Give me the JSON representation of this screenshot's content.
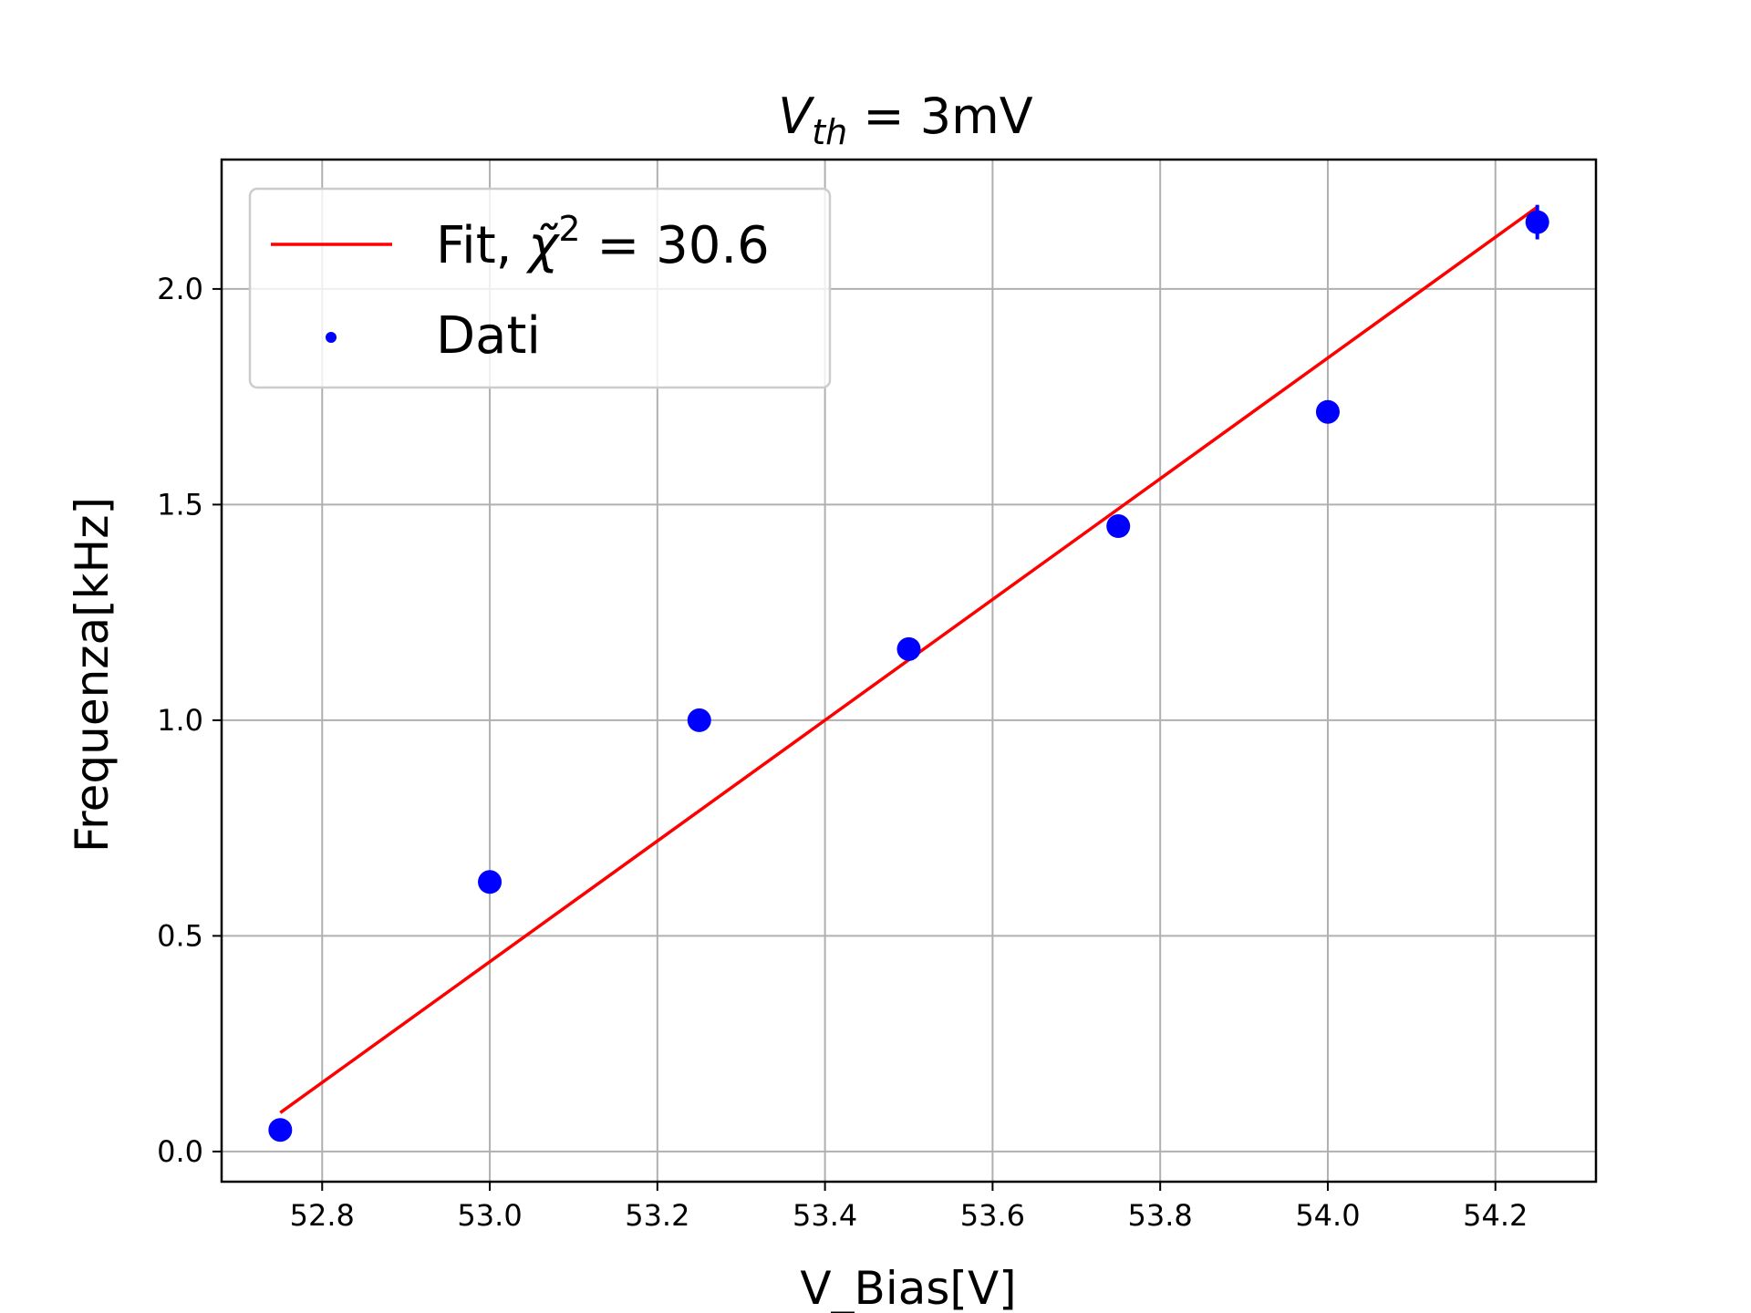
{
  "chart_data": {
    "type": "scatter",
    "title": "V_th = 3mV",
    "title_parts": {
      "main": "V",
      "sub": "th",
      "rest": " = 3mV"
    },
    "xlabel": "V_Bias[V]",
    "ylabel": "Frequenza[kHz]",
    "xlim": [
      52.68,
      54.32
    ],
    "ylim": [
      -0.07,
      2.3
    ],
    "xticks": [
      52.8,
      53.0,
      53.2,
      53.4,
      53.6,
      53.8,
      54.0,
      54.2
    ],
    "xtick_labels": [
      "52.8",
      "53.0",
      "53.2",
      "53.4",
      "53.6",
      "53.8",
      "54.0",
      "54.2"
    ],
    "yticks": [
      0.0,
      0.5,
      1.0,
      1.5,
      2.0
    ],
    "ytick_labels": [
      "0.0",
      "0.5",
      "1.0",
      "1.5",
      "2.0"
    ],
    "grid": true,
    "legend_position": "top-left",
    "series": [
      {
        "name": "Fit, χ̃² = 30.6",
        "legend_parts": {
          "prefix": "Fit, ",
          "chi": "χ̃",
          "sup": "2",
          "rest": " = 30.6"
        },
        "kind": "line",
        "color": "#ff0000",
        "x": [
          52.75,
          54.25
        ],
        "y": [
          0.09,
          2.19
        ]
      },
      {
        "name": "Dati",
        "kind": "scatter",
        "color": "#0000ff",
        "x": [
          52.75,
          53.0,
          53.25,
          53.5,
          53.75,
          54.0,
          54.25
        ],
        "y": [
          0.05,
          0.625,
          1.0,
          1.165,
          1.45,
          1.715,
          2.155
        ],
        "yerr": [
          0.0,
          0.0,
          0.0,
          0.0,
          0.0,
          0.0,
          0.04
        ]
      }
    ]
  }
}
